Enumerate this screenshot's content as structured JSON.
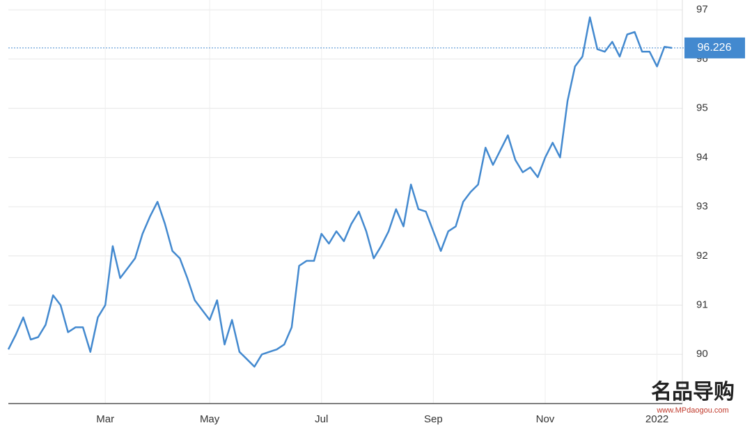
{
  "chart_data": {
    "type": "line",
    "categories": [
      null,
      null,
      null,
      null,
      null,
      null,
      null,
      null,
      null,
      null,
      null,
      null,
      null,
      "Mar",
      null,
      null,
      null,
      null,
      null,
      null,
      null,
      null,
      null,
      null,
      null,
      null,
      null,
      "May",
      null,
      null,
      null,
      null,
      null,
      null,
      null,
      null,
      null,
      null,
      null,
      null,
      null,
      null,
      "Jul",
      null,
      null,
      null,
      null,
      null,
      null,
      null,
      null,
      null,
      null,
      null,
      null,
      null,
      null,
      "Sep",
      null,
      null,
      null,
      null,
      null,
      null,
      null,
      null,
      null,
      null,
      null,
      null,
      null,
      null,
      "Nov",
      null,
      null,
      null,
      null,
      null,
      null,
      null,
      null,
      null,
      null,
      null,
      null,
      null,
      null,
      "2022",
      null,
      null
    ],
    "series": [
      {
        "color": "#4389cf",
        "values": [
          90.1,
          90.4,
          90.75,
          90.3,
          90.35,
          90.6,
          91.2,
          91.0,
          90.45,
          90.55,
          90.55,
          90.05,
          90.75,
          91.0,
          92.2,
          91.55,
          91.75,
          91.95,
          92.45,
          92.8,
          93.1,
          92.65,
          92.1,
          91.95,
          91.55,
          91.1,
          90.9,
          90.7,
          91.1,
          90.2,
          90.7,
          90.05,
          89.9,
          89.75,
          90.0,
          90.05,
          90.1,
          90.2,
          90.55,
          91.8,
          91.9,
          91.9,
          92.45,
          92.25,
          92.5,
          92.3,
          92.65,
          92.9,
          92.5,
          91.95,
          92.2,
          92.5,
          92.95,
          92.6,
          93.45,
          92.95,
          92.9,
          92.5,
          92.1,
          92.5,
          92.6,
          93.1,
          93.3,
          93.45,
          94.2,
          93.85,
          94.15,
          94.45,
          93.95,
          93.7,
          93.8,
          93.6,
          94.0,
          94.3,
          94.0,
          95.15,
          95.85,
          96.05,
          96.85,
          96.2,
          96.15,
          96.35,
          96.05,
          96.5,
          96.55,
          96.15,
          96.15,
          95.85,
          96.25,
          96.226
        ]
      }
    ],
    "current_value": 96.226,
    "ylim": [
      89,
      97.2
    ],
    "yticks": [
      90,
      91,
      92,
      93,
      94,
      95,
      96,
      97
    ],
    "grid": true
  },
  "watermark": {
    "brand": "名品导购",
    "url": "www.MPdaogou.com"
  }
}
